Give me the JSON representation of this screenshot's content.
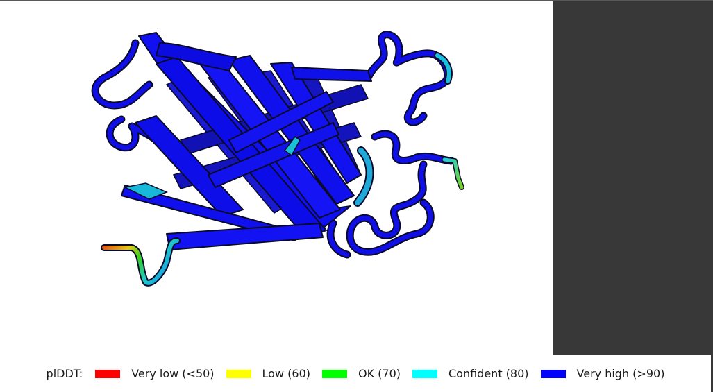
{
  "structure_view": {
    "colors": {
      "very_high": "#0a14e6",
      "confident": "#12c6e0",
      "ok": "#1ee61e",
      "low": "#e8e81a",
      "very_low": "#e6501a",
      "outline": "#0a0a28"
    }
  },
  "side_panel": {
    "color": "#383838"
  },
  "legend": {
    "title": "plDDT:",
    "items": [
      {
        "label": "Very low (<50)",
        "color": "#ff0000"
      },
      {
        "label": "Low (60)",
        "color": "#ffff00"
      },
      {
        "label": "OK (70)",
        "color": "#00ff00"
      },
      {
        "label": "Confident (80)",
        "color": "#00ffff"
      },
      {
        "label": "Very high (>90)",
        "color": "#0000ff"
      }
    ]
  }
}
